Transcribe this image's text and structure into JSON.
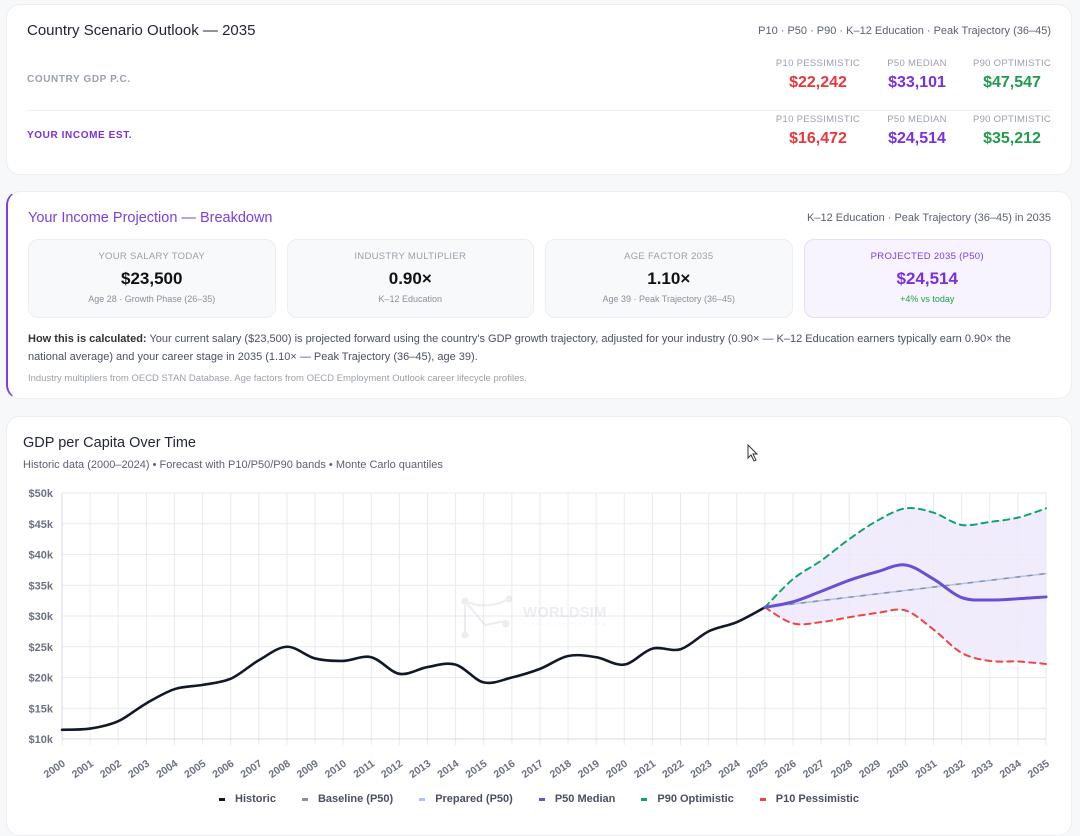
{
  "outlook": {
    "title": "Country Scenario Outlook — 2035",
    "meta": "P10 · P50 · P90 · K–12 Education · Peak Trajectory (36–45)",
    "rows": [
      {
        "label": "COUNTRY GDP P.C.",
        "p10_caption": "P10 PESSIMISTIC",
        "p10": "$22,242",
        "p50_caption": "P50 MEDIAN",
        "p50": "$33,101",
        "p90_caption": "P90 OPTIMISTIC",
        "p90": "$47,547"
      },
      {
        "label": "YOUR INCOME EST.",
        "p10_caption": "P10 PESSIMISTIC",
        "p10": "$16,472",
        "p50_caption": "P50 MEDIAN",
        "p50": "$24,514",
        "p90_caption": "P90 OPTIMISTIC",
        "p90": "$35,212"
      }
    ],
    "colors": {
      "p10": "#e5383b",
      "p50": "#7a2fe0",
      "p90": "#1f9d4c"
    }
  },
  "breakdown": {
    "title": "Your Income Projection — Breakdown",
    "meta": "K–12 Education · Peak Trajectory (36–45) in 2035",
    "tiles": [
      {
        "caption": "YOUR SALARY TODAY",
        "value": "$23,500",
        "sub": "Age 28 · Growth Phase (26–35)"
      },
      {
        "caption": "INDUSTRY MULTIPLIER",
        "value": "0.90×",
        "sub": "K–12 Education"
      },
      {
        "caption": "AGE FACTOR 2035",
        "value": "1.10×",
        "sub": "Age 39 · Peak Trajectory (36–45)"
      },
      {
        "caption": "PROJECTED 2035 (P50)",
        "value": "$24,514",
        "sub": "+4% vs today"
      }
    ],
    "explain_lead": "How this is calculated:",
    "explain_body": " Your current salary ($23,500) is projected forward using the country's GDP growth trajectory, adjusted for your industry (0.90× — K–12 Education earners typically earn 0.90× the national average) and your career stage in 2035 (1.10× — Peak Trajectory (36–45), age 39).",
    "source": "Industry multipliers from OECD STAN Database. Age factors from OECD Employment Outlook career lifecycle profiles."
  },
  "chart_card": {
    "title": "GDP per Capita Over Time",
    "subtitle": "Historic data (2000–2024) • Forecast with P10/P50/P90 bands • Monte Carlo quantiles",
    "watermark": "WORLDSIM",
    "watermark_sub": "SIMULATION PLATFORM"
  },
  "chart_data": {
    "type": "line",
    "title": "GDP per Capita Over Time",
    "xlabel": "",
    "ylabel": "",
    "ylim": [
      10000,
      50000
    ],
    "yticks": [
      10000,
      15000,
      20000,
      25000,
      30000,
      35000,
      40000,
      45000,
      50000
    ],
    "ytick_labels": [
      "$10k",
      "$15k",
      "$20k",
      "$25k",
      "$30k",
      "$35k",
      "$40k",
      "$45k",
      "$50k"
    ],
    "x": [
      2000,
      2001,
      2002,
      2003,
      2004,
      2005,
      2006,
      2007,
      2008,
      2009,
      2010,
      2011,
      2012,
      2013,
      2014,
      2015,
      2016,
      2017,
      2018,
      2019,
      2020,
      2021,
      2022,
      2023,
      2024,
      2025,
      2026,
      2027,
      2028,
      2029,
      2030,
      2031,
      2032,
      2033,
      2034,
      2035
    ],
    "grid": true,
    "legend_position": "bottom",
    "series": [
      {
        "name": "Historic",
        "color": "#111827",
        "style": "solid",
        "x": [
          2000,
          2001,
          2002,
          2003,
          2004,
          2005,
          2006,
          2007,
          2008,
          2009,
          2010,
          2011,
          2012,
          2013,
          2014,
          2015,
          2016,
          2017,
          2018,
          2019,
          2020,
          2021,
          2022,
          2023,
          2024,
          2025
        ],
        "values": [
          11500,
          11700,
          12900,
          15800,
          18100,
          18800,
          19800,
          22800,
          25000,
          23100,
          22700,
          23300,
          20600,
          21700,
          22100,
          19200,
          20000,
          21400,
          23500,
          23300,
          22100,
          24700,
          24600,
          27500,
          29000,
          31400
        ]
      },
      {
        "name": "Baseline (P50)",
        "color": "#8a8f9c",
        "style": "dashed",
        "x": [
          2025,
          2026,
          2027,
          2028,
          2029,
          2030,
          2031,
          2032,
          2033,
          2034,
          2035
        ],
        "values": [
          31400,
          31950,
          32500,
          33050,
          33600,
          34150,
          34700,
          35250,
          35800,
          36350,
          36900
        ]
      },
      {
        "name": "Prepared (P50)",
        "color": "#a9c4f5",
        "style": "dashed",
        "x": [
          2025,
          2026,
          2027,
          2028,
          2029,
          2030,
          2031,
          2032,
          2033,
          2034,
          2035
        ],
        "values": [
          31400,
          31950,
          32500,
          33050,
          33600,
          34150,
          34700,
          35250,
          35800,
          36350,
          36900
        ]
      },
      {
        "name": "P50 Median",
        "color": "#6a4fd0",
        "style": "solid",
        "x": [
          2025,
          2026,
          2027,
          2028,
          2029,
          2030,
          2031,
          2032,
          2033,
          2034,
          2035
        ],
        "values": [
          31400,
          32300,
          34000,
          35800,
          37200,
          38300,
          36000,
          33000,
          32600,
          32800,
          33100
        ]
      },
      {
        "name": "P90 Optimistic",
        "color": "#10a36e",
        "style": "dashed",
        "x": [
          2025,
          2026,
          2027,
          2028,
          2029,
          2030,
          2031,
          2032,
          2033,
          2034,
          2035
        ],
        "values": [
          31400,
          36000,
          39000,
          42500,
          45500,
          47500,
          46800,
          44800,
          45300,
          46000,
          47500
        ]
      },
      {
        "name": "P10 Pessimistic",
        "color": "#ef4444",
        "style": "dashed",
        "x": [
          2025,
          2026,
          2027,
          2028,
          2029,
          2030,
          2031,
          2032,
          2033,
          2034,
          2035
        ],
        "values": [
          31400,
          28800,
          29000,
          29800,
          30500,
          30900,
          27800,
          24000,
          22700,
          22600,
          22200
        ]
      }
    ],
    "band": {
      "name": "P10–P90 band",
      "color": "#ede9fb",
      "lower": "P10 Pessimistic",
      "upper": "P90 Optimistic"
    }
  }
}
